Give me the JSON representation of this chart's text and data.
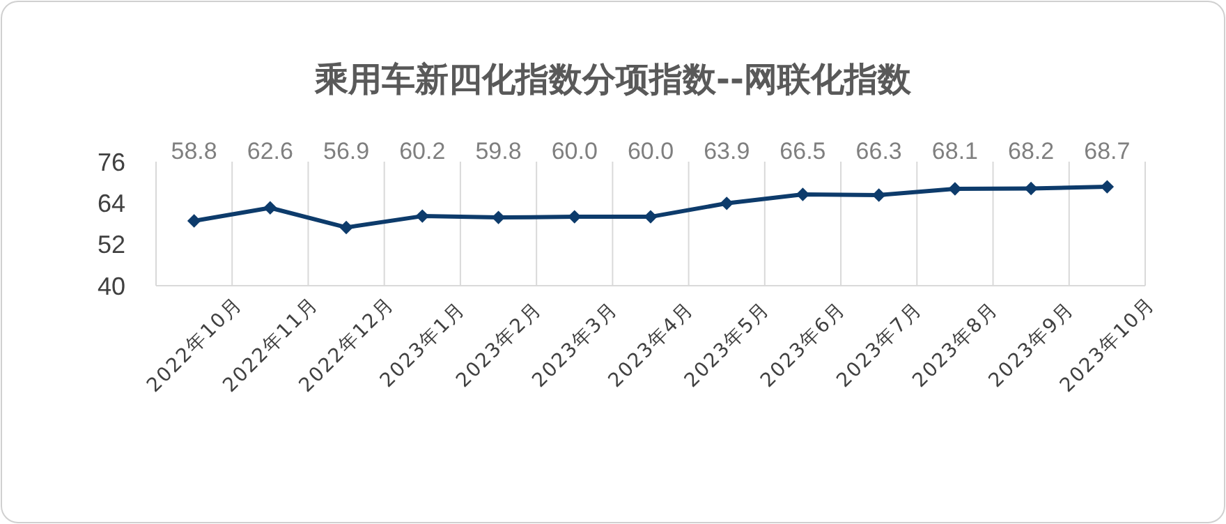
{
  "chart_data": {
    "type": "line",
    "title": "乘用车新四化指数分项指数--网联化指数",
    "categories": [
      "2022年10月",
      "2022年11月",
      "2022年12月",
      "2023年1月",
      "2023年2月",
      "2023年3月",
      "2023年4月",
      "2023年5月",
      "2023年6月",
      "2023年7月",
      "2023年8月",
      "2023年9月",
      "2023年10月"
    ],
    "series": [
      {
        "color": "#0d3b6b",
        "values": [
          58.8,
          62.6,
          56.9,
          60.2,
          59.8,
          60.0,
          60.0,
          63.9,
          66.5,
          66.3,
          68.1,
          68.2,
          68.7
        ],
        "value_labels": [
          "58.8",
          "62.6",
          "56.9",
          "60.2",
          "59.8",
          "60.0",
          "60.0",
          "63.9",
          "66.5",
          "66.3",
          "68.1",
          "68.2",
          "68.7"
        ]
      }
    ],
    "ylim": [
      40,
      76
    ],
    "yticks": [
      40,
      52,
      64,
      76
    ],
    "grid": "x",
    "marker": "diamond",
    "line_style": "solid"
  }
}
